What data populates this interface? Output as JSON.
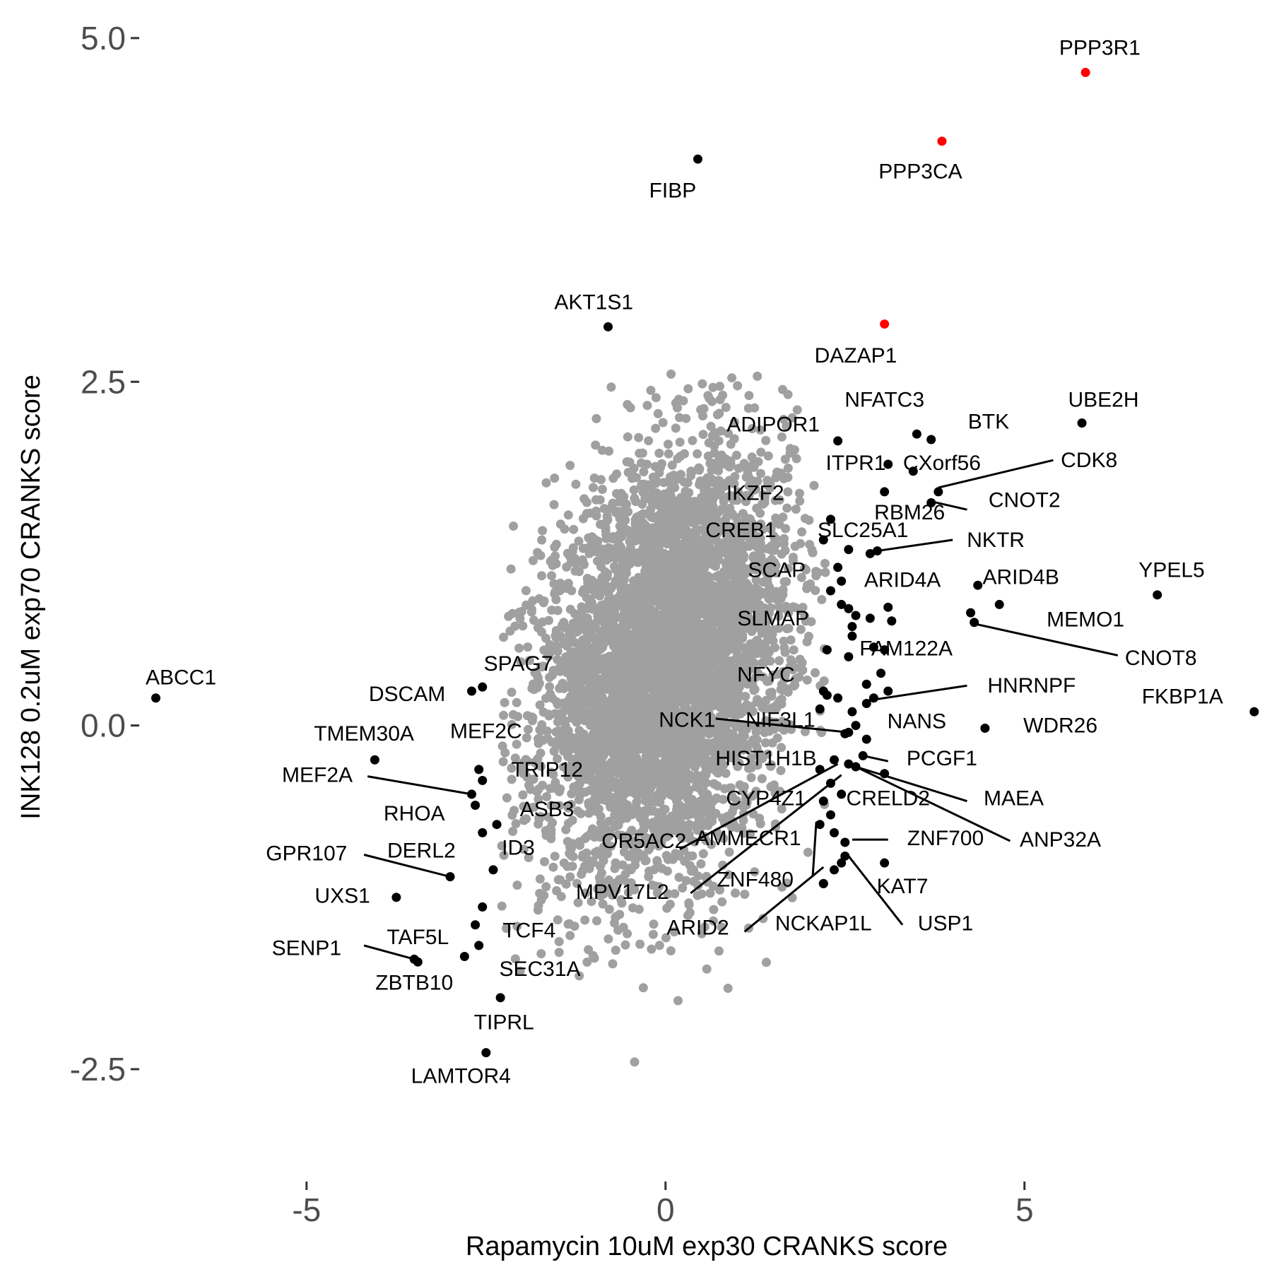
{
  "chart_data": {
    "type": "scatter",
    "title": "",
    "xlabel": "Rapamycin 10uM exp30 CRANKS score",
    "ylabel": "INK128 0.2uM exp70 CRANKS score",
    "xlim": [
      -7.4,
      8.3
    ],
    "ylim": [
      -3.05,
      5.2
    ],
    "x_ticks": [
      -5,
      0,
      5
    ],
    "x_tick_labels": [
      "-5",
      "0",
      "5"
    ],
    "y_ticks": [
      5.0,
      2.5,
      0.0,
      -2.5
    ],
    "y_tick_labels": [
      "5.0",
      "2.5",
      "0.0",
      "-2.5"
    ],
    "grid": false,
    "legend": "none",
    "colors": {
      "background_points": "#a0a0a0",
      "highlight_black": "#000000",
      "highlight_red": "#ff0000"
    },
    "background_points": {
      "description": "approx. 5000 genes, roughly bivariate normal",
      "x_center": 0.0,
      "x_sd": 0.85,
      "y_center": 0.45,
      "y_sd": 0.75,
      "correlation": 0.25
    },
    "series": [
      {
        "color": "#ff0000",
        "points": [
          {
            "x": 5.85,
            "y": 4.75,
            "label": "PPP3R1"
          },
          {
            "x": 3.85,
            "y": 4.25,
            "label": "PPP3CA"
          },
          {
            "x": 3.05,
            "y": 2.92,
            "label": "DAZAP1"
          }
        ]
      },
      {
        "color": "#000000",
        "points": [
          {
            "x": 0.45,
            "y": 4.12,
            "label": "FIBP"
          },
          {
            "x": -0.8,
            "y": 2.9,
            "label": "AKT1S1"
          },
          {
            "x": 5.8,
            "y": 2.2,
            "label": "UBE2H"
          },
          {
            "x": 3.5,
            "y": 2.12,
            "label": "BTK"
          },
          {
            "x": 3.7,
            "y": 2.08,
            "label": "NFATC3"
          },
          {
            "x": 2.4,
            "y": 2.07,
            "label": "ADIPOR1"
          },
          {
            "x": 3.1,
            "y": 1.9,
            "label": "ITPR1"
          },
          {
            "x": 3.45,
            "y": 1.85,
            "label": "CXorf56"
          },
          {
            "x": 3.8,
            "y": 1.7,
            "label": "CDK8"
          },
          {
            "x": 3.05,
            "y": 1.7,
            "label": "IKZF2"
          },
          {
            "x": 3.7,
            "y": 1.62,
            "label": "CNOT2"
          },
          {
            "x": 2.3,
            "y": 1.5,
            "label": "RBM26"
          },
          {
            "x": 2.2,
            "y": 1.35,
            "label": "CREB1"
          },
          {
            "x": 2.85,
            "y": 1.25,
            "label": "SLC25A1"
          },
          {
            "x": 2.95,
            "y": 1.27,
            "label": "NKTR"
          },
          {
            "x": 2.55,
            "y": 1.28,
            "label": ""
          },
          {
            "x": 2.4,
            "y": 1.15,
            "label": ""
          },
          {
            "x": 2.45,
            "y": 1.05,
            "label": "SCAP"
          },
          {
            "x": 2.3,
            "y": 0.98,
            "label": ""
          },
          {
            "x": 4.35,
            "y": 1.02,
            "label": "ARID4A"
          },
          {
            "x": 6.85,
            "y": 0.95,
            "label": "YPEL5"
          },
          {
            "x": 4.65,
            "y": 0.88,
            "label": "ARID4B"
          },
          {
            "x": 2.45,
            "y": 0.88,
            "label": ""
          },
          {
            "x": 2.55,
            "y": 0.85,
            "label": ""
          },
          {
            "x": 3.1,
            "y": 0.86,
            "label": ""
          },
          {
            "x": 4.25,
            "y": 0.82,
            "label": "MEMO1"
          },
          {
            "x": 2.65,
            "y": 0.8,
            "label": "SLMAP"
          },
          {
            "x": 2.85,
            "y": 0.78,
            "label": ""
          },
          {
            "x": 3.15,
            "y": 0.76,
            "label": ""
          },
          {
            "x": 2.6,
            "y": 0.72,
            "label": ""
          },
          {
            "x": 4.3,
            "y": 0.75,
            "label": "CNOT8"
          },
          {
            "x": 2.6,
            "y": 0.65,
            "label": ""
          },
          {
            "x": 2.25,
            "y": 0.55,
            "label": ""
          },
          {
            "x": 2.9,
            "y": 0.57,
            "label": "FAM122A"
          },
          {
            "x": 3.05,
            "y": 0.55,
            "label": ""
          },
          {
            "x": 2.55,
            "y": 0.5,
            "label": ""
          },
          {
            "x": 3.0,
            "y": 0.38,
            "label": ""
          },
          {
            "x": 2.2,
            "y": 0.25,
            "label": "NFYC"
          },
          {
            "x": 2.8,
            "y": 0.3,
            "label": ""
          },
          {
            "x": 3.1,
            "y": 0.25,
            "label": ""
          },
          {
            "x": 2.25,
            "y": 0.22,
            "label": ""
          },
          {
            "x": 2.9,
            "y": 0.2,
            "label": ""
          },
          {
            "x": 2.4,
            "y": 0.2,
            "label": ""
          },
          {
            "x": 2.15,
            "y": 0.12,
            "label": ""
          },
          {
            "x": 2.8,
            "y": 0.16,
            "label": "HNRNPF"
          },
          {
            "x": 2.6,
            "y": 0.1,
            "label": ""
          },
          {
            "x": 8.2,
            "y": 0.1,
            "label": "FKBP1A"
          },
          {
            "x": 2.65,
            "y": 0.0,
            "label": "NANS"
          },
          {
            "x": 2.55,
            "y": -0.05,
            "label": "NCK1"
          },
          {
            "x": 2.5,
            "y": -0.06,
            "label": "NIF3L1"
          },
          {
            "x": 4.45,
            "y": -0.02,
            "label": "WDR26"
          },
          {
            "x": 2.8,
            "y": -0.1,
            "label": ""
          },
          {
            "x": 2.75,
            "y": -0.22,
            "label": "PCGF1"
          },
          {
            "x": 2.35,
            "y": -0.25,
            "label": "HIST1H1B"
          },
          {
            "x": 2.55,
            "y": -0.28,
            "label": ""
          },
          {
            "x": 2.65,
            "y": -0.3,
            "label": "ANP32A"
          },
          {
            "x": 3.05,
            "y": -0.35,
            "label": "MAEA"
          },
          {
            "x": 2.15,
            "y": -0.32,
            "label": "OR5AC2"
          },
          {
            "x": 2.3,
            "y": -0.42,
            "label": "MPV17L2"
          },
          {
            "x": 2.45,
            "y": -0.5,
            "label": "CRELD2"
          },
          {
            "x": 2.2,
            "y": -0.55,
            "label": "CYP4Z1"
          },
          {
            "x": 2.3,
            "y": -0.65,
            "label": "AMMECR1"
          },
          {
            "x": 2.15,
            "y": -0.72,
            "label": ""
          },
          {
            "x": 2.35,
            "y": -0.78,
            "label": "ZNF480"
          },
          {
            "x": 2.5,
            "y": -0.85,
            "label": "ZNF700"
          },
          {
            "x": 2.5,
            "y": -0.95,
            "label": ""
          },
          {
            "x": 2.45,
            "y": -1.0,
            "label": "KAT7"
          },
          {
            "x": 3.05,
            "y": -1.0,
            "label": ""
          },
          {
            "x": 2.35,
            "y": -1.05,
            "label": "USP1"
          },
          {
            "x": 2.2,
            "y": -1.15,
            "label": "ARID2"
          },
          {
            "x": 2.2,
            "y": -1.15,
            "label": "NCKAP1L"
          },
          {
            "x": -7.1,
            "y": 0.2,
            "label": "ABCC1"
          },
          {
            "x": -2.55,
            "y": 0.28,
            "label": "SPAG7"
          },
          {
            "x": -2.7,
            "y": 0.25,
            "label": "DSCAM"
          },
          {
            "x": -4.05,
            "y": -0.25,
            "label": "TMEM30A"
          },
          {
            "x": -2.6,
            "y": -0.32,
            "label": "MEF2C"
          },
          {
            "x": -2.55,
            "y": -0.4,
            "label": "TRIP12"
          },
          {
            "x": -2.7,
            "y": -0.5,
            "label": "MEF2A"
          },
          {
            "x": -2.65,
            "y": -0.58,
            "label": "RHOA"
          },
          {
            "x": -2.35,
            "y": -0.72,
            "label": "ASB3"
          },
          {
            "x": -2.55,
            "y": -0.78,
            "label": "ID3"
          },
          {
            "x": -2.4,
            "y": -1.05,
            "label": "GPR107"
          },
          {
            "x": -3.0,
            "y": -1.1,
            "label": "DERL2"
          },
          {
            "x": -3.75,
            "y": -1.25,
            "label": "UXS1"
          },
          {
            "x": -2.55,
            "y": -1.32,
            "label": ""
          },
          {
            "x": -2.65,
            "y": -1.45,
            "label": "TCF4"
          },
          {
            "x": -2.6,
            "y": -1.6,
            "label": "TAF5L"
          },
          {
            "x": -2.8,
            "y": -1.68,
            "label": "SEC31A"
          },
          {
            "x": -3.5,
            "y": -1.7,
            "label": "SENP1"
          },
          {
            "x": -3.45,
            "y": -1.72,
            "label": "ZBTB10"
          },
          {
            "x": -2.3,
            "y": -1.98,
            "label": "TIPRL"
          },
          {
            "x": -2.5,
            "y": -2.38,
            "label": "LAMTOR4"
          }
        ]
      }
    ],
    "labels": [
      {
        "text": "PPP3R1",
        "x": 6.05,
        "y": 4.92
      },
      {
        "text": "PPP3CA",
        "x": 3.55,
        "y": 4.02
      },
      {
        "text": "FIBP",
        "x": 0.1,
        "y": 3.88
      },
      {
        "text": "AKT1S1",
        "x": -1.0,
        "y": 3.07
      },
      {
        "text": "DAZAP1",
        "x": 2.65,
        "y": 2.68
      },
      {
        "text": "NFATC3",
        "x": 3.05,
        "y": 2.36
      },
      {
        "text": "UBE2H",
        "x": 6.1,
        "y": 2.36
      },
      {
        "text": "BTK",
        "x": 4.5,
        "y": 2.2
      },
      {
        "text": "ADIPOR1",
        "x": 1.5,
        "y": 2.18
      },
      {
        "text": "ITPR1",
        "x": 2.65,
        "y": 1.9
      },
      {
        "text": "CXorf56",
        "x": 3.85,
        "y": 1.9
      },
      {
        "text": "CDK8",
        "x": 5.9,
        "y": 1.92
      },
      {
        "text": "IKZF2",
        "x": 1.25,
        "y": 1.68
      },
      {
        "text": "CNOT2",
        "x": 5.0,
        "y": 1.63
      },
      {
        "text": "RBM26",
        "x": 3.4,
        "y": 1.54
      },
      {
        "text": "CREB1",
        "x": 1.05,
        "y": 1.41
      },
      {
        "text": "SLC25A1",
        "x": 2.75,
        "y": 1.41
      },
      {
        "text": "NKTR",
        "x": 4.6,
        "y": 1.34
      },
      {
        "text": "SCAP",
        "x": 1.55,
        "y": 1.12
      },
      {
        "text": "ARID4A",
        "x": 3.3,
        "y": 1.05
      },
      {
        "text": "ARID4B",
        "x": 4.95,
        "y": 1.07
      },
      {
        "text": "YPEL5",
        "x": 7.05,
        "y": 1.12
      },
      {
        "text": "SLMAP",
        "x": 1.5,
        "y": 0.77
      },
      {
        "text": "MEMO1",
        "x": 5.85,
        "y": 0.76
      },
      {
        "text": "FAM122A",
        "x": 3.35,
        "y": 0.55
      },
      {
        "text": "CNOT8",
        "x": 6.9,
        "y": 0.48
      },
      {
        "text": "NFYC",
        "x": 1.4,
        "y": 0.36
      },
      {
        "text": "HNRNPF",
        "x": 5.1,
        "y": 0.28
      },
      {
        "text": "FKBP1A",
        "x": 7.2,
        "y": 0.2
      },
      {
        "text": "DSCAM",
        "x": -3.6,
        "y": 0.22
      },
      {
        "text": "SPAG7",
        "x": -2.05,
        "y": 0.44
      },
      {
        "text": "ABCC1",
        "x": -6.75,
        "y": 0.34
      },
      {
        "text": "NCK1",
        "x": 0.3,
        "y": 0.03
      },
      {
        "text": "NIF3L1",
        "x": 1.6,
        "y": 0.03
      },
      {
        "text": "NANS",
        "x": 3.5,
        "y": 0.02
      },
      {
        "text": "WDR26",
        "x": 5.5,
        "y": -0.01
      },
      {
        "text": "TMEM30A",
        "x": -4.2,
        "y": -0.07
      },
      {
        "text": "MEF2C",
        "x": -2.5,
        "y": -0.05
      },
      {
        "text": "HIST1H1B",
        "x": 1.4,
        "y": -0.25
      },
      {
        "text": "PCGF1",
        "x": 3.85,
        "y": -0.25
      },
      {
        "text": "TRIP12",
        "x": -1.65,
        "y": -0.33
      },
      {
        "text": "MEF2A",
        "x": -4.85,
        "y": -0.37
      },
      {
        "text": "CYP4Z1",
        "x": 1.4,
        "y": -0.54
      },
      {
        "text": "CRELD2",
        "x": 3.1,
        "y": -0.54
      },
      {
        "text": "MAEA",
        "x": 4.85,
        "y": -0.54
      },
      {
        "text": "RHOA",
        "x": -3.5,
        "y": -0.65
      },
      {
        "text": "ASB3",
        "x": -1.65,
        "y": -0.62
      },
      {
        "text": "OR5AC2",
        "x": -0.3,
        "y": -0.85
      },
      {
        "text": "AMMECR1",
        "x": 1.15,
        "y": -0.83
      },
      {
        "text": "ZNF700",
        "x": 3.9,
        "y": -0.83
      },
      {
        "text": "ANP32A",
        "x": 5.5,
        "y": -0.84
      },
      {
        "text": "ID3",
        "x": -2.05,
        "y": -0.9
      },
      {
        "text": "GPR107",
        "x": -5.0,
        "y": -0.94
      },
      {
        "text": "DERL2",
        "x": -3.4,
        "y": -0.92
      },
      {
        "text": "MPV17L2",
        "x": -0.6,
        "y": -1.22
      },
      {
        "text": "ZNF480",
        "x": 1.25,
        "y": -1.13
      },
      {
        "text": "KAT7",
        "x": 3.3,
        "y": -1.18
      },
      {
        "text": "UXS1",
        "x": -4.5,
        "y": -1.25
      },
      {
        "text": "ARID2",
        "x": 0.45,
        "y": -1.48
      },
      {
        "text": "NCKAP1L",
        "x": 2.2,
        "y": -1.45
      },
      {
        "text": "USP1",
        "x": 3.9,
        "y": -1.45
      },
      {
        "text": "TCF4",
        "x": -1.9,
        "y": -1.5
      },
      {
        "text": "TAF5L",
        "x": -3.45,
        "y": -1.55
      },
      {
        "text": "SENP1",
        "x": -5.0,
        "y": -1.63
      },
      {
        "text": "SEC31A",
        "x": -1.75,
        "y": -1.78
      },
      {
        "text": "ZBTB10",
        "x": -3.5,
        "y": -1.88
      },
      {
        "text": "TIPRL",
        "x": -2.25,
        "y": -2.17
      },
      {
        "text": "LAMTOR4",
        "x": -2.85,
        "y": -2.56
      }
    ],
    "connectors": [
      {
        "from": [
          3.8,
          1.73
        ],
        "to": [
          5.4,
          1.93
        ]
      },
      {
        "from": [
          3.7,
          1.63
        ],
        "to": [
          4.2,
          1.57
        ]
      },
      {
        "from": [
          2.95,
          1.27
        ],
        "to": [
          4.0,
          1.35
        ]
      },
      {
        "from": [
          4.3,
          0.74
        ],
        "to": [
          6.3,
          0.51
        ]
      },
      {
        "from": [
          2.8,
          0.18
        ],
        "to": [
          4.2,
          0.29
        ]
      },
      {
        "from": [
          2.55,
          -0.05
        ],
        "to": [
          0.7,
          0.05
        ]
      },
      {
        "from": [
          2.75,
          -0.22
        ],
        "to": [
          3.1,
          -0.26
        ]
      },
      {
        "from": [
          2.65,
          -0.3
        ],
        "to": [
          4.2,
          -0.55
        ]
      },
      {
        "from": [
          2.65,
          -0.3
        ],
        "to": [
          4.8,
          -0.84
        ]
      },
      {
        "from": [
          2.4,
          -0.28
        ],
        "to": [
          0.2,
          -0.9
        ]
      },
      {
        "from": [
          2.45,
          -0.36
        ],
        "to": [
          0.35,
          -1.22
        ]
      },
      {
        "from": [
          2.1,
          -0.7
        ],
        "to": [
          2.05,
          -1.1
        ]
      },
      {
        "from": [
          2.6,
          -0.83
        ],
        "to": [
          3.1,
          -0.83
        ]
      },
      {
        "from": [
          2.55,
          -0.95
        ],
        "to": [
          3.3,
          -1.45
        ]
      },
      {
        "from": [
          2.2,
          -1.03
        ],
        "to": [
          1.1,
          -1.5
        ]
      },
      {
        "from": [
          -2.7,
          -0.5
        ],
        "to": [
          -4.15,
          -0.37
        ]
      },
      {
        "from": [
          -3.0,
          -1.1
        ],
        "to": [
          -4.2,
          -0.94
        ]
      },
      {
        "from": [
          -3.5,
          -1.7
        ],
        "to": [
          -4.2,
          -1.6
        ]
      }
    ]
  }
}
